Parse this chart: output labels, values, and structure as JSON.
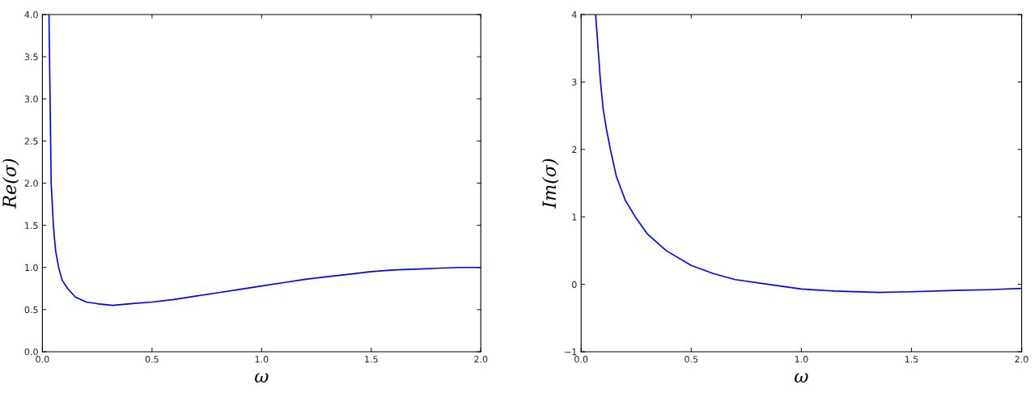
{
  "chart_data": [
    {
      "type": "line",
      "xlabel": "ω",
      "ylabel": "Re(σ)",
      "xlim": [
        0,
        2
      ],
      "ylim": [
        0,
        4
      ],
      "xticks": [
        {
          "value": 0,
          "label": "0.0"
        },
        {
          "value": 0.5,
          "label": "0.5"
        },
        {
          "value": 1,
          "label": "1.0"
        },
        {
          "value": 1.5,
          "label": "1.5"
        },
        {
          "value": 2,
          "label": "2.0"
        }
      ],
      "yticks": [
        {
          "value": 0,
          "label": "0.0"
        },
        {
          "value": 0.5,
          "label": "0.5"
        },
        {
          "value": 1,
          "label": "1.0"
        },
        {
          "value": 1.5,
          "label": "1.5"
        },
        {
          "value": 2,
          "label": "2.0"
        },
        {
          "value": 2.5,
          "label": "2.5"
        },
        {
          "value": 3,
          "label": "3.0"
        },
        {
          "value": 3.5,
          "label": "3.5"
        },
        {
          "value": 4,
          "label": "4.0"
        }
      ],
      "grid": false,
      "legend": false,
      "series": [
        {
          "color": "#0000ff",
          "x": [
            0.03,
            0.035,
            0.04,
            0.05,
            0.06,
            0.074,
            0.09,
            0.115,
            0.15,
            0.2,
            0.25,
            0.32,
            0.4,
            0.5,
            0.6,
            0.7,
            0.8,
            0.9,
            1.0,
            1.1,
            1.2,
            1.3,
            1.4,
            1.5,
            1.6,
            1.7,
            1.8,
            1.9,
            2.0
          ],
          "values": [
            4.0,
            3.0,
            2.0,
            1.5,
            1.2,
            1.0,
            0.85,
            0.75,
            0.65,
            0.59,
            0.57,
            0.55,
            0.57,
            0.59,
            0.62,
            0.66,
            0.7,
            0.74,
            0.78,
            0.82,
            0.86,
            0.89,
            0.92,
            0.95,
            0.97,
            0.98,
            0.99,
            1.0,
            1.0
          ]
        }
      ]
    },
    {
      "type": "line",
      "xlabel": "ω",
      "ylabel": "Im(σ)",
      "xlim": [
        0,
        2
      ],
      "ylim": [
        -1,
        4
      ],
      "xticks": [
        {
          "value": 0,
          "label": "0.0"
        },
        {
          "value": 0.5,
          "label": "0.5"
        },
        {
          "value": 1,
          "label": "1.0"
        },
        {
          "value": 1.5,
          "label": "1.5"
        },
        {
          "value": 2,
          "label": "2.0"
        }
      ],
      "yticks": [
        {
          "value": -1,
          "label": "−1"
        },
        0,
        1,
        2,
        3,
        4
      ],
      "grid": false,
      "legend": false,
      "series": [
        {
          "color": "#0000ff",
          "x": [
            0.066,
            0.077,
            0.088,
            0.1,
            0.115,
            0.133,
            0.16,
            0.2,
            0.246,
            0.3,
            0.386,
            0.5,
            0.6,
            0.7,
            0.85,
            1.0,
            1.15,
            1.35,
            1.5,
            1.7,
            1.85,
            2.0
          ],
          "values": [
            4.0,
            3.5,
            3.0,
            2.6,
            2.3,
            2.0,
            1.6,
            1.25,
            1.0,
            0.75,
            0.5,
            0.28,
            0.16,
            0.07,
            0.0,
            -0.07,
            -0.1,
            -0.12,
            -0.11,
            -0.09,
            -0.08,
            -0.06
          ]
        }
      ]
    }
  ]
}
